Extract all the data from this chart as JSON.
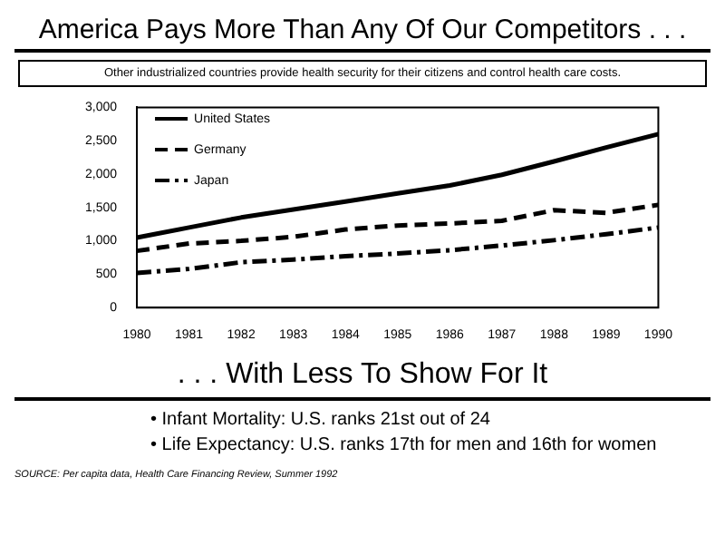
{
  "chart_data": {
    "type": "line",
    "title": "America Pays More Than Any Of Our Competitors . . .",
    "subtitle": "Other industrialized countries provide health security for their citizens and control health care costs.",
    "categories": [
      "1980",
      "1981",
      "1982",
      "1983",
      "1984",
      "1985",
      "1986",
      "1987",
      "1988",
      "1989",
      "1990"
    ],
    "series": [
      {
        "name": "United States",
        "color": "#000000",
        "line_style": "solid",
        "values": [
          1050,
          1200,
          1350,
          1470,
          1590,
          1710,
          1830,
          1990,
          2190,
          2400,
          2600
        ]
      },
      {
        "name": "Germany",
        "color": "#000000",
        "line_style": "dashed",
        "values": [
          850,
          960,
          1000,
          1060,
          1170,
          1230,
          1260,
          1300,
          1460,
          1420,
          1540
        ]
      },
      {
        "name": "Japan",
        "color": "#000000",
        "line_style": "dashdot",
        "values": [
          520,
          580,
          680,
          720,
          770,
          810,
          860,
          930,
          1010,
          1100,
          1200
        ]
      }
    ],
    "ylim": [
      0,
      3000
    ],
    "yticks": [
      0,
      500,
      {
        "value": 1000,
        "label": "1,000"
      },
      {
        "value": 1500,
        "label": "1,500"
      },
      {
        "value": 2000,
        "label": "2,000"
      },
      {
        "value": 2500,
        "label": "2,500"
      },
      {
        "value": 3000,
        "label": "3,000"
      }
    ],
    "grid": false,
    "legend": "top left",
    "marker": "none",
    "annotations": [
      ". . . With Less To Show For It",
      "• Infant Mortality: U.S. ranks 21st out of 24",
      "• Life Expectancy: U.S. ranks 17th for men and 16th for women",
      "SOURCE: Per capita data, Health Care Financing Review, Summer 1992"
    ]
  }
}
